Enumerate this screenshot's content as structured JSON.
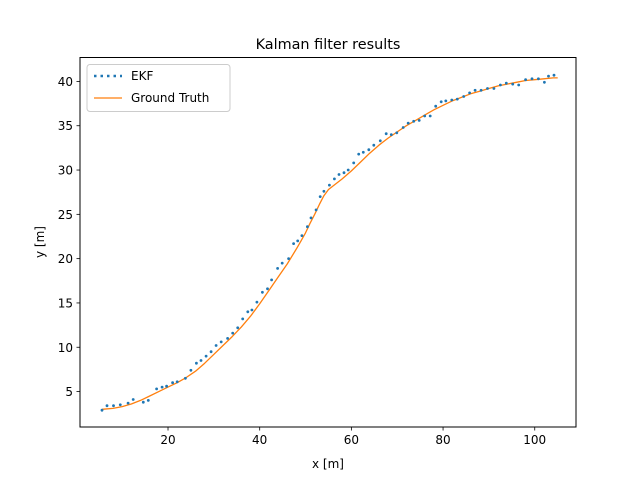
{
  "chart_data": {
    "type": "line",
    "title": "Kalman filter results",
    "xlabel": "x [m]",
    "ylabel": "y [m]",
    "xlim": [
      0.8,
      109.0
    ],
    "ylim": [
      1.0,
      42.7
    ],
    "xticks": [
      20,
      40,
      60,
      80,
      100
    ],
    "yticks": [
      5,
      10,
      15,
      20,
      25,
      30,
      35,
      40
    ],
    "grid": false,
    "legend_position": "top-left",
    "colors": {
      "ekf": "#1f77b4",
      "truth": "#ff7f0e"
    },
    "series": [
      {
        "name": "EKF",
        "style": "dotted",
        "x": [
          5.6,
          6.7,
          8.1,
          9.6,
          11.3,
          12.4,
          14.6,
          15.7,
          17.5,
          18.7,
          19.7,
          21.0,
          22.0,
          23.8,
          25.0,
          26.2,
          27.2,
          28.3,
          29.4,
          30.5,
          31.6,
          33.0,
          34.1,
          35.2,
          36.3,
          37.4,
          38.3,
          39.4,
          40.6,
          41.7,
          42.6,
          43.9,
          44.9,
          46.3,
          47.4,
          48.3,
          49.2,
          50.4,
          51.2,
          52.3,
          53.2,
          54.0,
          55.2,
          56.3,
          57.3,
          58.4,
          59.3,
          60.5,
          61.6,
          62.6,
          63.8,
          64.9,
          66.3,
          67.6,
          68.7,
          69.9,
          71.3,
          72.4,
          73.6,
          74.8,
          76.0,
          77.2,
          78.4,
          79.6,
          80.6,
          81.9,
          83.1,
          84.5,
          85.8,
          87.0,
          88.3,
          89.7,
          91.1,
          92.5,
          93.8,
          95.2,
          96.5,
          98.0,
          99.4,
          100.8,
          102.1,
          103.0,
          104.2
        ],
        "y": [
          2.9,
          3.4,
          3.4,
          3.5,
          3.7,
          4.1,
          3.8,
          4.0,
          5.3,
          5.5,
          5.6,
          6.0,
          6.1,
          6.5,
          7.4,
          8.2,
          8.5,
          9.0,
          9.5,
          10.2,
          10.6,
          11.0,
          11.6,
          12.2,
          13.2,
          14.0,
          14.2,
          15.1,
          16.2,
          16.6,
          17.6,
          18.9,
          19.5,
          20.0,
          21.7,
          22.0,
          22.6,
          23.6,
          24.6,
          25.5,
          27.0,
          27.6,
          28.3,
          29.0,
          29.5,
          29.7,
          30.0,
          30.8,
          31.8,
          32.0,
          32.3,
          32.8,
          33.3,
          34.1,
          34.0,
          34.2,
          34.8,
          35.3,
          35.5,
          35.6,
          36.1,
          36.1,
          37.2,
          37.7,
          37.8,
          37.9,
          38.0,
          38.3,
          38.7,
          39.0,
          39.0,
          39.2,
          39.2,
          39.6,
          39.8,
          39.7,
          39.6,
          40.2,
          40.3,
          40.3,
          39.9,
          40.6,
          40.7
        ]
      },
      {
        "name": "Ground Truth",
        "style": "solid",
        "x": [
          5.6,
          8.0,
          10.0,
          12.0,
          14.0,
          16.0,
          18.0,
          20.0,
          22.0,
          24.0,
          26.0,
          28.0,
          30.0,
          32.0,
          34.0,
          36.0,
          38.0,
          40.0,
          42.0,
          44.0,
          46.0,
          48.0,
          49.0,
          50.0,
          51.0,
          52.0,
          53.0,
          54.0,
          55.0,
          56.0,
          58.0,
          60.0,
          62.0,
          64.0,
          66.0,
          68.0,
          70.0,
          72.0,
          74.0,
          76.0,
          78.0,
          80.0,
          82.0,
          84.0,
          86.0,
          88.0,
          90.0,
          92.0,
          94.0,
          96.0,
          98.0,
          100.0,
          102.0,
          104.0,
          105.0
        ],
        "y": [
          3.0,
          3.1,
          3.3,
          3.6,
          4.0,
          4.5,
          5.0,
          5.5,
          6.0,
          6.6,
          7.3,
          8.2,
          9.2,
          10.2,
          11.2,
          12.3,
          13.5,
          14.9,
          16.4,
          17.9,
          19.4,
          21.1,
          22.0,
          22.9,
          24.0,
          25.0,
          26.1,
          27.1,
          27.8,
          28.2,
          29.0,
          29.9,
          30.9,
          31.9,
          32.8,
          33.6,
          34.3,
          35.0,
          35.6,
          36.2,
          36.8,
          37.3,
          37.8,
          38.2,
          38.6,
          38.9,
          39.2,
          39.5,
          39.7,
          39.9,
          40.1,
          40.2,
          40.3,
          40.4,
          40.4
        ]
      }
    ]
  }
}
